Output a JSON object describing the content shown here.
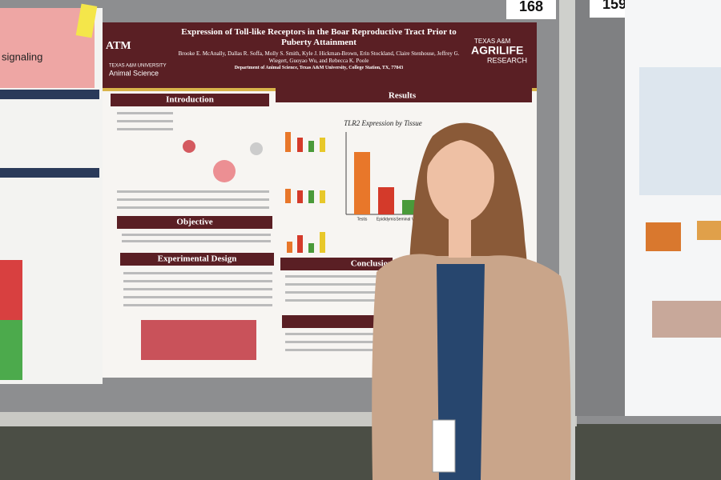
{
  "booth_numbers": [
    "168",
    "159"
  ],
  "left_poster": {
    "heading": "signaling"
  },
  "poster": {
    "title": "Expression of Toll-like Receptors in the Boar Reproductive Tract Prior to Puberty Attainment",
    "authors": "Brooke E. McAnally, Dallas R. Soffa, Molly S. Smith, Kyle J. Hickman-Brown, Erin Stockland, Claire Stenhouse, Jeffrey G. Wiegert, Guoyao Wu, and Rebecca K. Poole",
    "affiliation": "Department of Animal Science, Texas A&M University, College Station, TX, 77843",
    "logo_left": [
      "TEXAS A&M UNIVERSITY",
      "Animal Science"
    ],
    "logo_right": [
      "TEXAS A&M",
      "AGRILIFE",
      "RESEARCH"
    ],
    "sections": [
      "Introduction",
      "Objective",
      "Experimental Design",
      "Results",
      "Conclusion"
    ],
    "chart_title": "TLR2 Expression by Tissue",
    "chart_labels": [
      "Testis",
      "Epididymis",
      "Seminal Vesicle"
    ]
  }
}
